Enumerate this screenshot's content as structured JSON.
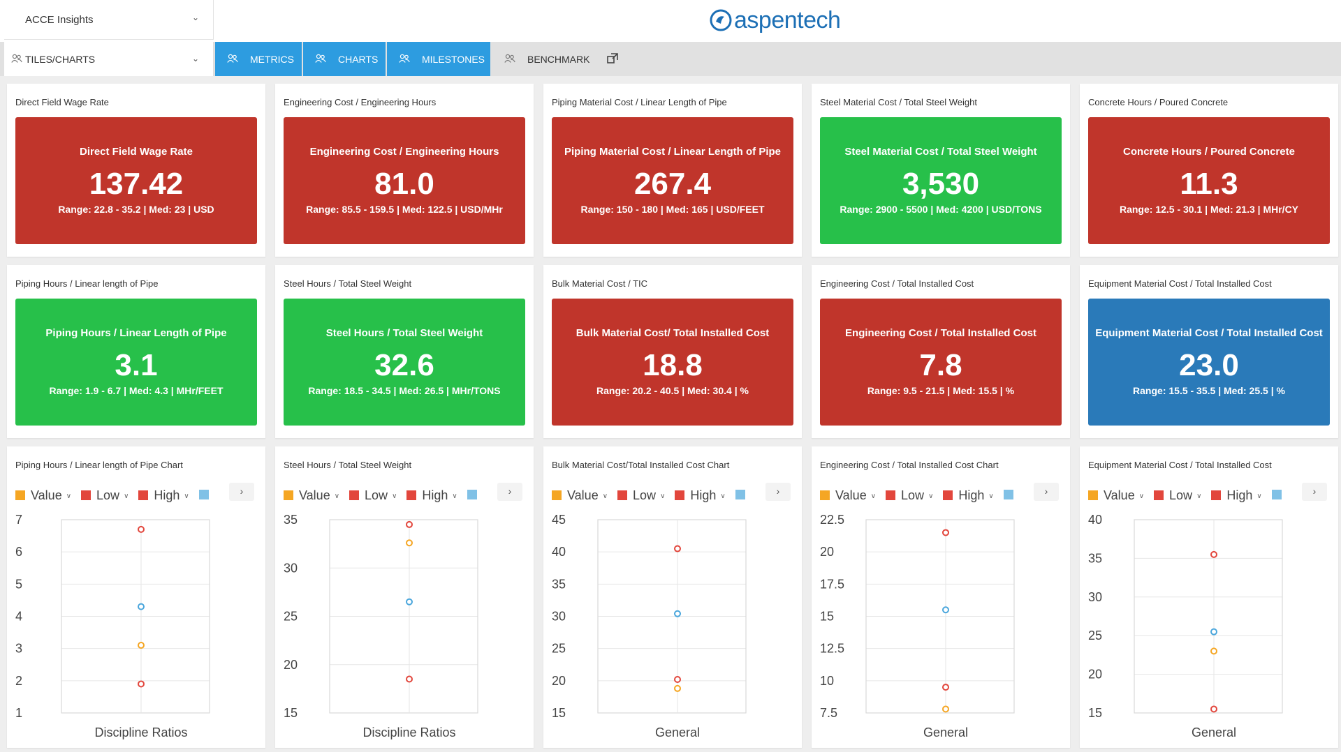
{
  "header": {
    "app_selector": "ACCE Insights",
    "logo_text": "aspentech"
  },
  "nav": {
    "view_selector": "TILES/CHARTS",
    "tabs": [
      {
        "label": "METRICS",
        "active": true
      },
      {
        "label": "CHARTS",
        "active": true
      },
      {
        "label": "MILESTONES",
        "active": true
      },
      {
        "label": "BENCHMARK",
        "active": false
      }
    ]
  },
  "colors": {
    "red": "#c0352b",
    "green": "#27c04a",
    "blue": "#2a7ab9",
    "tab_blue": "#2d9ce0",
    "value_series": "#f5a623",
    "low_series": "#e2463c",
    "high_series": "#e2463c",
    "median_series": "#4aa6dc"
  },
  "tiles": [
    {
      "title": "Direct Field Wage Rate",
      "label": "Direct Field Wage Rate",
      "value": "137.42",
      "range": "Range: 22.8 - 35.2 | Med: 23 | USD",
      "color": "red"
    },
    {
      "title": "Engineering Cost / Engineering Hours",
      "label": "Engineering Cost / Engineering Hours",
      "value": "81.0",
      "range": "Range: 85.5 - 159.5 | Med: 122.5 | USD/MHr",
      "color": "red"
    },
    {
      "title": "Piping Material Cost / Linear Length of Pipe",
      "label": "Piping Material Cost / Linear Length of Pipe",
      "value": "267.4",
      "range": "Range: 150 - 180 | Med: 165 | USD/FEET",
      "color": "red"
    },
    {
      "title": "Steel Material Cost / Total Steel Weight",
      "label": "Steel Material Cost / Total Steel Weight",
      "value": "3,530",
      "range": "Range: 2900 - 5500 | Med: 4200 | USD/TONS",
      "color": "green"
    },
    {
      "title": "Concrete Hours / Poured Concrete",
      "label": "Concrete Hours / Poured Concrete",
      "value": "11.3",
      "range": "Range: 12.5 - 30.1 | Med: 21.3 | MHr/CY",
      "color": "red"
    },
    {
      "title": "Piping Hours / Linear length of Pipe",
      "label": "Piping Hours / Linear Length of Pipe",
      "value": "3.1",
      "range": "Range: 1.9 - 6.7 | Med: 4.3 | MHr/FEET",
      "color": "green"
    },
    {
      "title": "Steel Hours / Total Steel Weight",
      "label": "Steel Hours / Total Steel Weight",
      "value": "32.6",
      "range": "Range: 18.5 - 34.5 | Med: 26.5 | MHr/TONS",
      "color": "green"
    },
    {
      "title": "Bulk Material Cost / TIC",
      "label": "Bulk Material Cost/ Total Installed Cost",
      "value": "18.8",
      "range": "Range: 20.2 - 40.5 | Med: 30.4 | %",
      "color": "red"
    },
    {
      "title": "Engineering Cost / Total Installed Cost",
      "label": "Engineering Cost / Total Installed Cost",
      "value": "7.8",
      "range": "Range: 9.5 - 21.5 | Med: 15.5 | %",
      "color": "red"
    },
    {
      "title": "Equipment Material Cost / Total Installed Cost",
      "label": "Equipment Material Cost / Total Installed Cost",
      "value": "23.0",
      "range": "Range: 15.5 - 35.5 | Med: 25.5 | %",
      "color": "blue"
    }
  ],
  "chart_data": [
    {
      "type": "scatter",
      "title": "Piping Hours / Linear length of Pipe Chart",
      "legend": [
        "Value",
        "Low",
        "High"
      ],
      "categories": [
        "Discipline Ratios"
      ],
      "xlabel": "Discipline Ratios",
      "ylim": [
        1,
        7
      ],
      "yticks": [
        1,
        2,
        3,
        4,
        5,
        6,
        7
      ],
      "ytick_labels": [
        "1",
        "2",
        "3",
        "4",
        "5",
        "6",
        "7"
      ],
      "series": [
        {
          "name": "Value",
          "values": [
            3.1
          ]
        },
        {
          "name": "Low",
          "values": [
            1.9
          ]
        },
        {
          "name": "High",
          "values": [
            6.7
          ]
        },
        {
          "values": [
            4.3
          ]
        }
      ]
    },
    {
      "type": "scatter",
      "title": "Steel Hours / Total Steel Weight",
      "legend": [
        "Value",
        "Low",
        "High"
      ],
      "categories": [
        "Discipline Ratios"
      ],
      "xlabel": "Discipline Ratios",
      "ylim": [
        15,
        35
      ],
      "yticks": [
        15,
        20,
        25,
        30,
        35
      ],
      "ytick_labels": [
        "15",
        "20",
        "25",
        "30",
        "35"
      ],
      "series": [
        {
          "name": "Value",
          "values": [
            32.6
          ]
        },
        {
          "name": "Low",
          "values": [
            18.5
          ]
        },
        {
          "name": "High",
          "values": [
            34.5
          ]
        },
        {
          "values": [
            26.5
          ]
        }
      ]
    },
    {
      "type": "scatter",
      "title": "Bulk Material Cost/Total Installed Cost Chart",
      "legend": [
        "Value",
        "Low",
        "High"
      ],
      "categories": [
        "General"
      ],
      "xlabel": "General",
      "ylim": [
        15,
        45
      ],
      "yticks": [
        15,
        20,
        25,
        30,
        35,
        40,
        45
      ],
      "ytick_labels": [
        "15",
        "20",
        "25",
        "30",
        "35",
        "40",
        "45"
      ],
      "series": [
        {
          "name": "Value",
          "values": [
            18.8
          ]
        },
        {
          "name": "Low",
          "values": [
            20.2
          ]
        },
        {
          "name": "High",
          "values": [
            40.5
          ]
        },
        {
          "values": [
            30.4
          ]
        }
      ]
    },
    {
      "type": "scatter",
      "title": "Engineering Cost / Total Installed Cost Chart",
      "legend": [
        "Value",
        "Low",
        "High"
      ],
      "categories": [
        "General"
      ],
      "xlabel": "General",
      "ylim": [
        7.5,
        22.5
      ],
      "yticks": [
        7.5,
        10,
        12.5,
        15,
        17.5,
        20,
        22.5
      ],
      "ytick_labels": [
        "7.5",
        "10",
        "12.5",
        "15",
        "17.5",
        "20",
        "22.5"
      ],
      "series": [
        {
          "name": "Value",
          "values": [
            7.8
          ]
        },
        {
          "name": "Low",
          "values": [
            9.5
          ]
        },
        {
          "name": "High",
          "values": [
            21.5
          ]
        },
        {
          "values": [
            15.5
          ]
        }
      ]
    },
    {
      "type": "scatter",
      "title": "Equipment Material Cost / Total Installed Cost",
      "legend": [
        "Value",
        "Low",
        "High"
      ],
      "categories": [
        "General"
      ],
      "xlabel": "General",
      "ylim": [
        15,
        40
      ],
      "yticks": [
        15,
        20,
        25,
        30,
        35,
        40
      ],
      "ytick_labels": [
        "15",
        "20",
        "25",
        "30",
        "35",
        "40"
      ],
      "series": [
        {
          "name": "Value",
          "values": [
            23.0
          ]
        },
        {
          "name": "Low",
          "values": [
            15.5
          ]
        },
        {
          "name": "High",
          "values": [
            35.5
          ]
        },
        {
          "values": [
            25.5
          ]
        }
      ]
    }
  ]
}
